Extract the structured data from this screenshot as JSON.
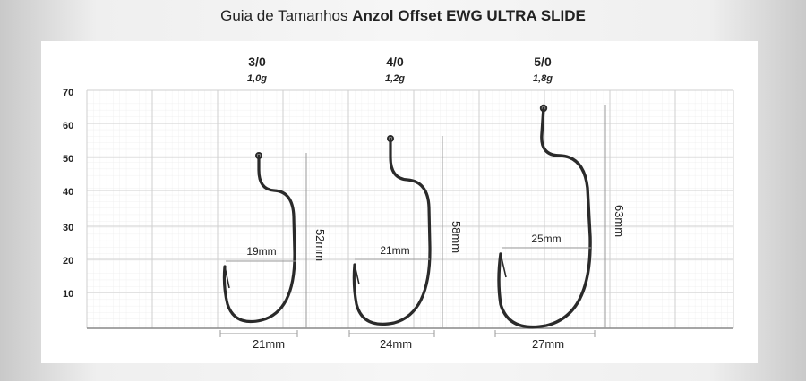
{
  "header": {
    "prefix": "Guia de Tamanhos ",
    "product": "Anzol Offset EWG ULTRA SLIDE"
  },
  "y_axis": {
    "ticks": [
      "70",
      "60",
      "50",
      "40",
      "30",
      "20",
      "10"
    ]
  },
  "hooks": [
    {
      "size": "3/0",
      "weight": "1,0g",
      "gap": "19mm",
      "height": "52mm",
      "width": "21mm"
    },
    {
      "size": "4/0",
      "weight": "1,2g",
      "gap": "21mm",
      "height": "58mm",
      "width": "24mm"
    },
    {
      "size": "5/0",
      "weight": "1,8g",
      "gap": "25mm",
      "height": "63mm",
      "width": "27mm"
    }
  ],
  "colors": {
    "hook": "#2a2a2a",
    "grid_minor": "#ececec",
    "grid_major": "#cfcfcf",
    "dim_line": "#9a9a9a"
  }
}
